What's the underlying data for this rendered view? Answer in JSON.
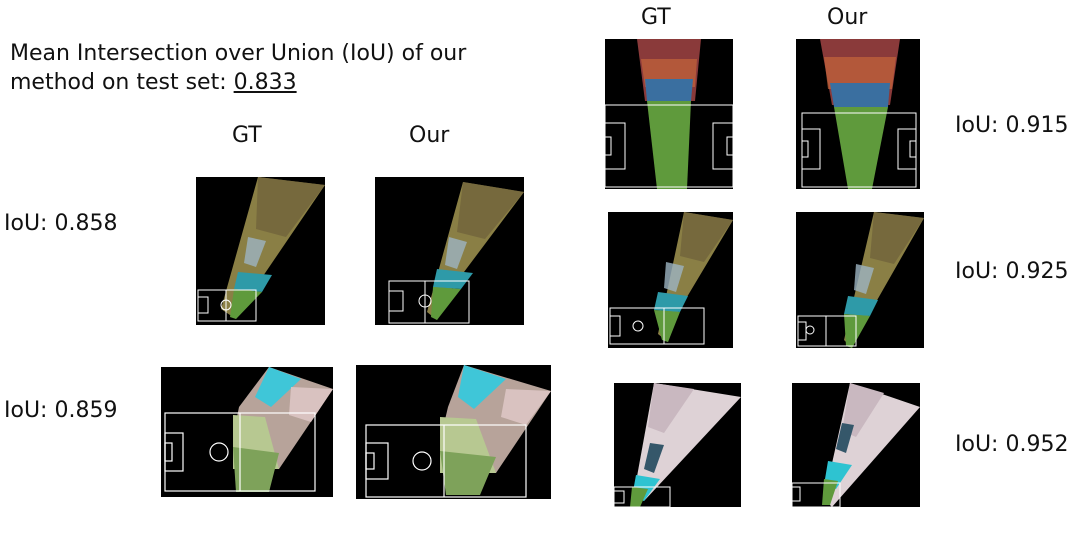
{
  "summary": {
    "line1": "Mean Intersection over Union (IoU) of our",
    "line2_prefix": "method on test set: ",
    "mean_iou": "0.833"
  },
  "headers": {
    "gt": "GT",
    "ours": "Our"
  },
  "results": [
    {
      "iou_label": "IoU: 0.858"
    },
    {
      "iou_label": "IoU: 0.859"
    },
    {
      "iou_label": "IoU: 0.915"
    },
    {
      "iou_label": "IoU: 0.925"
    },
    {
      "iou_label": "IoU: 0.952"
    }
  ],
  "colors": {
    "pitch": "#5f9a3c",
    "lines": "#ffffff",
    "background": "#000000"
  }
}
